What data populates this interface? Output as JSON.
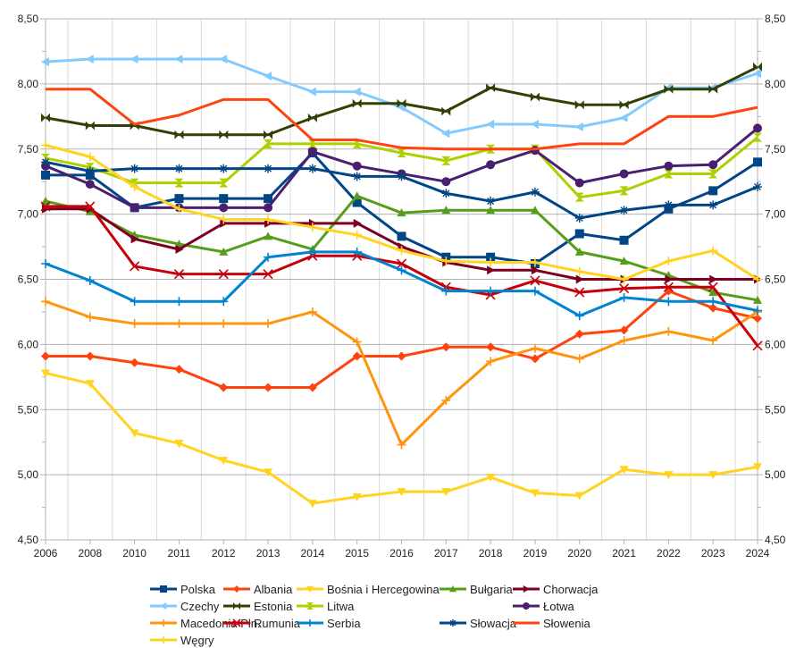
{
  "chart_data": {
    "type": "line",
    "title": "",
    "xlabel": "",
    "ylabel": "",
    "ylim": [
      4.5,
      8.5
    ],
    "y_ticks": [
      "4,50",
      "5,00",
      "5,50",
      "6,00",
      "6,50",
      "7,00",
      "7,50",
      "8,00",
      "8,50"
    ],
    "y_tick_values": [
      4.5,
      5.0,
      5.5,
      6.0,
      6.5,
      7.0,
      7.5,
      8.0,
      8.5
    ],
    "grid": true,
    "secondary_y_axis": true,
    "legend_position": "bottom",
    "categories": [
      "2006",
      "2008",
      "2010",
      "2011",
      "2012",
      "2013",
      "2014",
      "2015",
      "2016",
      "2017",
      "2018",
      "2019",
      "2020",
      "2021",
      "2022",
      "2023",
      "2024"
    ],
    "series": [
      {
        "name": "Polska",
        "color": "#004586",
        "marker": "square",
        "values": [
          7.3,
          7.3,
          7.05,
          7.12,
          7.12,
          7.12,
          7.47,
          7.09,
          6.83,
          6.67,
          6.67,
          6.62,
          6.85,
          6.8,
          7.04,
          7.18,
          7.4
        ]
      },
      {
        "name": "Albania",
        "color": "#ff420e",
        "marker": "diamond",
        "values": [
          5.91,
          5.91,
          5.86,
          5.81,
          5.67,
          5.67,
          5.67,
          5.91,
          5.91,
          5.98,
          5.98,
          5.89,
          6.08,
          6.11,
          6.41,
          6.28,
          6.2
        ]
      },
      {
        "name": "Bośnia i Hercegowina",
        "color": "#ffd320",
        "marker": "triangle-down",
        "values": [
          5.78,
          5.7,
          5.32,
          5.24,
          5.11,
          5.02,
          4.78,
          4.83,
          4.87,
          4.87,
          4.98,
          4.86,
          4.84,
          5.04,
          5.0,
          5.0,
          5.06
        ]
      },
      {
        "name": "Bułgaria",
        "color": "#579d1c",
        "marker": "triangle-up",
        "values": [
          7.1,
          7.02,
          6.84,
          6.77,
          6.71,
          6.83,
          6.73,
          7.14,
          7.01,
          7.03,
          7.03,
          7.03,
          6.71,
          6.64,
          6.53,
          6.4,
          6.34
        ]
      },
      {
        "name": "Chorwacja",
        "color": "#7e0021",
        "marker": "triangle-right",
        "values": [
          7.04,
          7.04,
          6.81,
          6.73,
          6.93,
          6.93,
          6.93,
          6.93,
          6.75,
          6.63,
          6.57,
          6.57,
          6.5,
          6.5,
          6.5,
          6.5,
          6.5
        ]
      },
      {
        "name": "Czechy",
        "color": "#83caff",
        "marker": "triangle-left",
        "values": [
          8.17,
          8.19,
          8.19,
          8.19,
          8.19,
          8.06,
          7.94,
          7.94,
          7.82,
          7.62,
          7.69,
          7.69,
          7.67,
          7.74,
          7.97,
          7.97,
          8.08
        ]
      },
      {
        "name": "Estonia",
        "color": "#314004",
        "marker": "bowtie",
        "values": [
          7.74,
          7.68,
          7.68,
          7.61,
          7.61,
          7.61,
          7.74,
          7.85,
          7.85,
          7.79,
          7.97,
          7.9,
          7.84,
          7.84,
          7.96,
          7.96,
          8.13
        ]
      },
      {
        "name": "Litwa",
        "color": "#aecf00",
        "marker": "hourglass",
        "values": [
          7.43,
          7.36,
          7.24,
          7.24,
          7.24,
          7.54,
          7.54,
          7.54,
          7.47,
          7.41,
          7.5,
          7.5,
          7.13,
          7.18,
          7.31,
          7.31,
          7.59
        ]
      },
      {
        "name": "Łotwa",
        "color": "#4b1f6f",
        "marker": "circle",
        "values": [
          7.37,
          7.23,
          7.05,
          7.05,
          7.05,
          7.05,
          7.48,
          7.37,
          7.31,
          7.25,
          7.38,
          7.49,
          7.24,
          7.31,
          7.37,
          7.38,
          7.66
        ]
      },
      {
        "name": "Macedonia Płn.",
        "color": "#ff950e",
        "marker": "plus",
        "values": [
          6.33,
          6.21,
          6.16,
          6.16,
          6.16,
          6.16,
          6.25,
          6.02,
          5.23,
          5.57,
          5.87,
          5.97,
          5.89,
          6.03,
          6.1,
          6.03,
          6.25
        ]
      },
      {
        "name": "Rumunia",
        "color": "#c5000b",
        "marker": "x",
        "values": [
          7.06,
          7.06,
          6.6,
          6.54,
          6.54,
          6.54,
          6.68,
          6.68,
          6.62,
          6.44,
          6.38,
          6.49,
          6.4,
          6.43,
          6.44,
          6.44,
          5.99
        ]
      },
      {
        "name": "Serbia",
        "color": "#0084d1",
        "marker": "plus",
        "values": [
          6.62,
          6.49,
          6.33,
          6.33,
          6.33,
          6.67,
          6.71,
          6.71,
          6.57,
          6.41,
          6.41,
          6.41,
          6.22,
          6.36,
          6.33,
          6.33,
          6.26
        ]
      },
      {
        "name": "Słowacja",
        "color": "#004586",
        "marker": "asterisk",
        "values": [
          7.4,
          7.33,
          7.35,
          7.35,
          7.35,
          7.35,
          7.35,
          7.29,
          7.29,
          7.16,
          7.1,
          7.17,
          6.97,
          7.03,
          7.07,
          7.07,
          7.21
        ]
      },
      {
        "name": "Słowenia",
        "color": "#ff420e",
        "marker": "none",
        "values": [
          7.96,
          7.96,
          7.69,
          7.76,
          7.88,
          7.88,
          7.57,
          7.57,
          7.51,
          7.5,
          7.5,
          7.5,
          7.54,
          7.54,
          7.75,
          7.75,
          7.82
        ]
      },
      {
        "name": "Węgry",
        "color": "#ffd320",
        "marker": "plus",
        "values": [
          7.53,
          7.44,
          7.21,
          7.04,
          6.96,
          6.96,
          6.9,
          6.84,
          6.72,
          6.64,
          6.63,
          6.63,
          6.56,
          6.5,
          6.64,
          6.72,
          6.5
        ]
      }
    ],
    "legend_order": [
      [
        "Polska",
        "Albania",
        "Bośnia i Hercegowina",
        "Bułgaria",
        "Chorwacja"
      ],
      [
        "Czechy",
        "Estonia",
        "Litwa",
        "",
        "Łotwa",
        "Macedonia Płn."
      ],
      [
        "Rumunia",
        "Serbia",
        "Słowacja",
        "Słowenia",
        "Węgry"
      ]
    ]
  }
}
